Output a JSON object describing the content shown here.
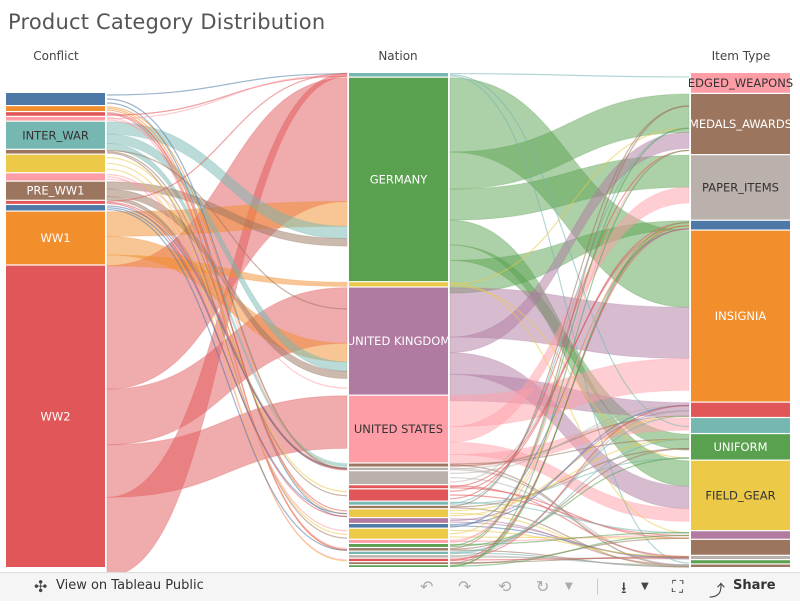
{
  "title": "Product Category Distribution",
  "toolbar": {
    "view_label": "View on Tableau Public",
    "share_label": "Share",
    "icons": [
      "tableau-logo-icon",
      "undo-icon",
      "redo-icon",
      "revert-icon",
      "refresh-icon",
      "dropdown-caret-icon",
      "download-icon",
      "fullscreen-icon",
      "share-icon"
    ]
  },
  "chart_data": {
    "type": "sankey",
    "title": "Product Category Distribution",
    "columns": [
      {
        "header": "Conflict",
        "nodes": [
          {
            "label": "",
            "value": 2.0,
            "color": "#4e79a7"
          },
          {
            "label": "",
            "value": 0.8,
            "color": "#f28e2b"
          },
          {
            "label": "",
            "value": 0.6,
            "color": "#e15759"
          },
          {
            "label": "",
            "value": 0.6,
            "color": "#ff9da7"
          },
          {
            "label": "INTER_WAR",
            "value": 4.5,
            "color": "#76b7b2"
          },
          {
            "label": "",
            "value": 0.6,
            "color": "#9c755f"
          },
          {
            "label": "",
            "value": 2.9,
            "color": "#edc948"
          },
          {
            "label": "",
            "value": 1.2,
            "color": "#ff9da7"
          },
          {
            "label": "PRE_WW1",
            "value": 3.0,
            "color": "#9c755f"
          },
          {
            "label": "",
            "value": 0.5,
            "color": "#e15759"
          },
          {
            "label": "",
            "value": 0.9,
            "color": "#4e79a7"
          },
          {
            "label": "WW1",
            "value": 8.8,
            "color": "#f28e2b"
          },
          {
            "label": "WW2",
            "value": 50.3,
            "color": "#e15759"
          }
        ]
      },
      {
        "header": "Nation",
        "nodes": [
          {
            "label": "",
            "value": 0.6,
            "color": "#76b7b2"
          },
          {
            "label": "GERMANY",
            "value": 34.8,
            "color": "#59a14f"
          },
          {
            "label": "",
            "value": 0.7,
            "color": "#edc948"
          },
          {
            "label": "UNITED KINGDOM",
            "value": 18.3,
            "color": "#b07aa1"
          },
          {
            "label": "UNITED STATES",
            "value": 11.4,
            "color": "#ff9da7"
          },
          {
            "label": "",
            "value": 0.5,
            "color": "#9c755f"
          },
          {
            "label": "",
            "value": 0.4,
            "color": "#bab0ac"
          },
          {
            "label": "",
            "value": 2.2,
            "color": "#bab0ac"
          },
          {
            "label": "",
            "value": 0.5,
            "color": "#e15759"
          },
          {
            "label": "",
            "value": 1.9,
            "color": "#e15759"
          },
          {
            "label": "",
            "value": 0.5,
            "color": "#76b7b2"
          },
          {
            "label": "",
            "value": 0.4,
            "color": "#9c755f"
          },
          {
            "label": "",
            "value": 1.3,
            "color": "#edc948"
          },
          {
            "label": "",
            "value": 0.8,
            "color": "#b07aa1"
          },
          {
            "label": "",
            "value": 0.6,
            "color": "#4e79a7"
          },
          {
            "label": "",
            "value": 1.7,
            "color": "#edc948"
          },
          {
            "label": "",
            "value": 0.5,
            "color": "#ff9da7"
          },
          {
            "label": "",
            "value": 0.5,
            "color": "#59a14f"
          },
          {
            "label": "",
            "value": 0.4,
            "color": "#9c755f"
          },
          {
            "label": "",
            "value": 0.4,
            "color": "#76b7b2"
          },
          {
            "label": "",
            "value": 0.4,
            "color": "#bab0ac"
          },
          {
            "label": "",
            "value": 0.4,
            "color": "#e15759"
          },
          {
            "label": "",
            "value": 0.3,
            "color": "#9c755f"
          },
          {
            "label": "",
            "value": 0.3,
            "color": "#59a14f"
          }
        ]
      },
      {
        "header": "Item Type",
        "nodes": [
          {
            "label": "EDGED_WEAPONS",
            "value": 3.2,
            "color": "#ff9da7"
          },
          {
            "label": "MEDALS_AWARDS",
            "value": 9.7,
            "color": "#9c755f"
          },
          {
            "label": "PAPER_ITEMS",
            "value": 10.4,
            "color": "#bab0ac"
          },
          {
            "label": "",
            "value": 1.4,
            "color": "#4e79a7"
          },
          {
            "label": "INSIGNIA",
            "value": 27.6,
            "color": "#f28e2b"
          },
          {
            "label": "",
            "value": 2.3,
            "color": "#e15759"
          },
          {
            "label": "",
            "value": 2.4,
            "color": "#76b7b2"
          },
          {
            "label": "UNIFORM",
            "value": 4.1,
            "color": "#59a14f"
          },
          {
            "label": "FIELD_GEAR",
            "value": 11.2,
            "color": "#edc948"
          },
          {
            "label": "",
            "value": 1.2,
            "color": "#b07aa1"
          },
          {
            "label": "",
            "value": 2.4,
            "color": "#9c755f"
          },
          {
            "label": "",
            "value": 0.5,
            "color": "#bab0ac"
          },
          {
            "label": "",
            "value": 0.5,
            "color": "#59a14f"
          },
          {
            "label": "",
            "value": 0.4,
            "color": "#9c755f"
          }
        ]
      }
    ],
    "flows_left": [
      [
        "WW2",
        "GERMANY",
        20.0
      ],
      [
        "WW2",
        "UNITED KINGDOM",
        9.0
      ],
      [
        "WW2",
        "UNITED STATES",
        8.5
      ],
      [
        "WW2",
        "other",
        12.8
      ],
      [
        "WW1",
        "GERMANY",
        4.0
      ],
      [
        "WW1",
        "UNITED KINGDOM",
        3.0
      ],
      [
        "WW1",
        "other",
        1.8
      ],
      [
        "INTER_WAR",
        "GERMANY",
        2.0
      ],
      [
        "INTER_WAR",
        "UNITED KINGDOM",
        1.5
      ],
      [
        "INTER_WAR",
        "other",
        1.0
      ],
      [
        "PRE_WW1",
        "GERMANY",
        1.2
      ],
      [
        "PRE_WW1",
        "UNITED KINGDOM",
        1.2
      ],
      [
        "PRE_WW1",
        "other",
        0.6
      ]
    ],
    "flows_right": [
      [
        "GERMANY",
        "INSIGNIA",
        12.0
      ],
      [
        "GERMANY",
        "MEDALS_AWARDS",
        6.0
      ],
      [
        "GERMANY",
        "PAPER_ITEMS",
        5.0
      ],
      [
        "GERMANY",
        "FIELD_GEAR",
        4.0
      ],
      [
        "GERMANY",
        "UNIFORM",
        2.5
      ],
      [
        "GERMANY",
        "other",
        5.3
      ],
      [
        "UNITED KINGDOM",
        "INSIGNIA",
        8.0
      ],
      [
        "UNITED KINGDOM",
        "MEDALS_AWARDS",
        2.5
      ],
      [
        "UNITED KINGDOM",
        "FIELD_GEAR",
        3.5
      ],
      [
        "UNITED KINGDOM",
        "other",
        4.3
      ],
      [
        "UNITED STATES",
        "INSIGNIA",
        5.0
      ],
      [
        "UNITED STATES",
        "PAPER_ITEMS",
        2.5
      ],
      [
        "UNITED STATES",
        "FIELD_GEAR",
        2.0
      ],
      [
        "UNITED STATES",
        "other",
        1.9
      ]
    ]
  }
}
